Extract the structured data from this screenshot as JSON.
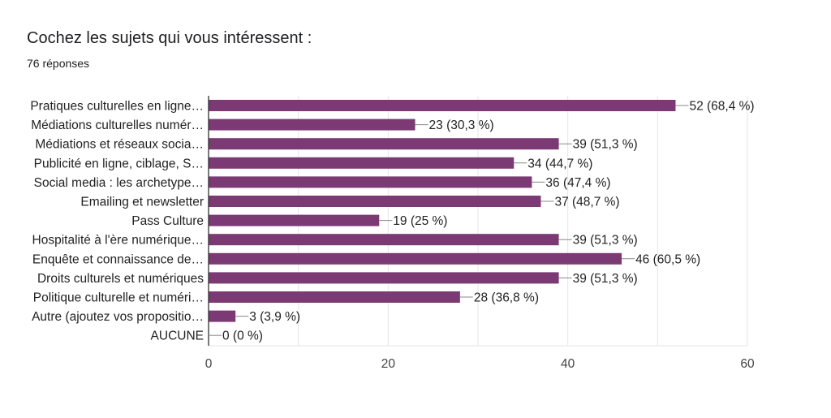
{
  "header": {
    "title": "Cochez les sujets qui vous intéressent :",
    "subtitle": "76 réponses"
  },
  "colors": {
    "bar": "#7b3a73",
    "grid": "#e6e6e6",
    "axis": "#333333",
    "leader": "#888888"
  },
  "chart_data": {
    "type": "bar",
    "orientation": "horizontal",
    "categories": [
      "Pratiques culturelles en ligne…",
      "Médiations culturelles numér…",
      "Médiations et réseaux socia…",
      "Publicité en ligne, ciblage, S…",
      "Social media : les archetype…",
      "Emailing et newsletter",
      "Pass Culture",
      "Hospitalité à l'ère numérique…",
      "Enquête et connaissance de…",
      "Droits culturels et numériques",
      "Politique culturelle et numéri…",
      "Autre (ajoutez vos propositio…",
      "AUCUNE"
    ],
    "values": [
      52,
      23,
      39,
      34,
      36,
      37,
      19,
      39,
      46,
      39,
      28,
      3,
      0
    ],
    "value_labels": [
      "52 (68,4 %)",
      "23 (30,3 %)",
      "39 (51,3 %)",
      "34 (44,7 %)",
      "36 (47,4 %)",
      "37 (48,7 %)",
      "19 (25 %)",
      "39 (51,3 %)",
      "46 (60,5 %)",
      "39 (51,3 %)",
      "28 (36,8 %)",
      "3 (3,9 %)",
      "0 (0 %)"
    ],
    "x_ticks": [
      0,
      20,
      40,
      60
    ],
    "xlim": [
      0,
      60
    ],
    "grid": true,
    "legend": "none"
  }
}
